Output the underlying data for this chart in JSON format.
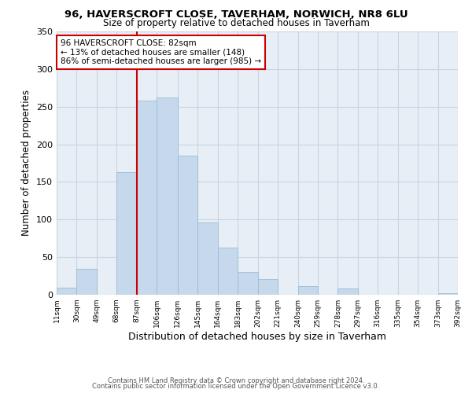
{
  "title": "96, HAVERSCROFT CLOSE, TAVERHAM, NORWICH, NR8 6LU",
  "subtitle": "Size of property relative to detached houses in Taverham",
  "xlabel": "Distribution of detached houses by size in Taverham",
  "ylabel": "Number of detached properties",
  "bar_color": "#c5d8ec",
  "bar_edge_color": "#9bbdd6",
  "plot_bg_color": "#e8eef5",
  "bins": [
    11,
    30,
    49,
    68,
    87,
    106,
    126,
    145,
    164,
    183,
    202,
    221,
    240,
    259,
    278,
    297,
    316,
    335,
    354,
    373,
    392
  ],
  "values": [
    9,
    34,
    0,
    163,
    258,
    262,
    185,
    96,
    63,
    30,
    21,
    0,
    11,
    0,
    8,
    0,
    0,
    0,
    0,
    2
  ],
  "tick_labels": [
    "11sqm",
    "30sqm",
    "49sqm",
    "68sqm",
    "87sqm",
    "106sqm",
    "126sqm",
    "145sqm",
    "164sqm",
    "183sqm",
    "202sqm",
    "221sqm",
    "240sqm",
    "259sqm",
    "278sqm",
    "297sqm",
    "316sqm",
    "335sqm",
    "354sqm",
    "373sqm",
    "392sqm"
  ],
  "ylim": [
    0,
    350
  ],
  "yticks": [
    0,
    50,
    100,
    150,
    200,
    250,
    300,
    350
  ],
  "vline_x": 87,
  "annotation_line1": "96 HAVERSCROFT CLOSE: 82sqm",
  "annotation_line2": "← 13% of detached houses are smaller (148)",
  "annotation_line3": "86% of semi-detached houses are larger (985) →",
  "box_color": "#cc0000",
  "footer_line1": "Contains HM Land Registry data © Crown copyright and database right 2024.",
  "footer_line2": "Contains public sector information licensed under the Open Government Licence v3.0.",
  "bg_color": "#ffffff",
  "grid_color": "#c8d4e0"
}
